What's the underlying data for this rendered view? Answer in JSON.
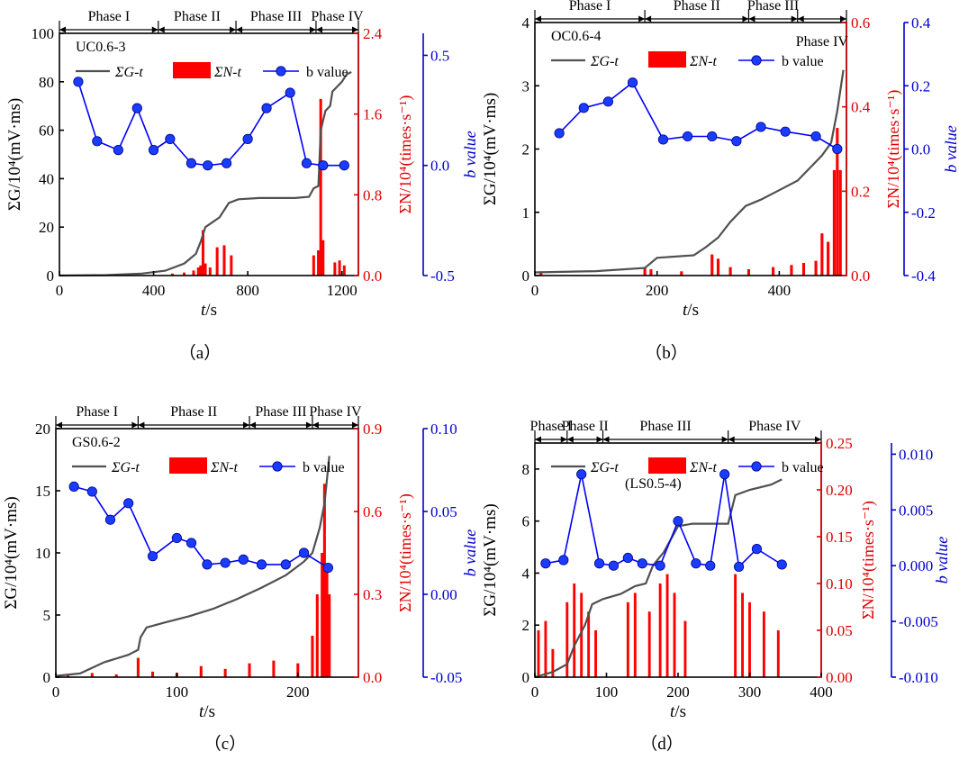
{
  "chart_data": [
    {
      "type": "line",
      "sample_id": "UC0.6-3",
      "caption": "（a）",
      "phases": [
        "Phase I",
        "Phase II",
        "Phase III",
        "Phase IV"
      ],
      "phase_bounds": [
        0,
        420,
        750,
        1090,
        1270
      ],
      "x": {
        "label_var": "t",
        "label_unit": "/s",
        "range": [
          0,
          1270
        ],
        "ticks": [
          0,
          400,
          800,
          1200
        ]
      },
      "y_left": {
        "label": "ΣG/10⁴(mV·ms)",
        "range": [
          0,
          100
        ],
        "ticks": [
          0,
          20,
          40,
          60,
          80,
          100
        ],
        "tick_labels": [
          "0",
          "20",
          "40",
          "60",
          "80",
          "100"
        ]
      },
      "y_red": {
        "label": "ΣN/10⁴(times·s⁻¹)",
        "range": [
          0,
          2.4
        ],
        "ticks": [
          0,
          0.8,
          1.6,
          2.4
        ],
        "tick_labels": [
          "0.0",
          "0.8",
          "1.6",
          "2.4"
        ]
      },
      "y_blue": {
        "label": "b value",
        "range": [
          -0.5,
          0.6
        ],
        "ticks": [
          -0.5,
          0,
          0.5
        ],
        "tick_labels": [
          "-0.5",
          "0.0",
          "0.5"
        ]
      },
      "legend": {
        "sg": "ΣG-t",
        "sn": "ΣN-t",
        "b": "b value"
      },
      "sg": [
        [
          0,
          0
        ],
        [
          200,
          0.2
        ],
        [
          350,
          0.8
        ],
        [
          450,
          2
        ],
        [
          530,
          5
        ],
        [
          580,
          9
        ],
        [
          600,
          14
        ],
        [
          620,
          20
        ],
        [
          650,
          22
        ],
        [
          680,
          24
        ],
        [
          720,
          30
        ],
        [
          760,
          31.5
        ],
        [
          850,
          32
        ],
        [
          1000,
          32
        ],
        [
          1060,
          32.5
        ],
        [
          1080,
          36
        ],
        [
          1100,
          37
        ],
        [
          1110,
          60
        ],
        [
          1130,
          68
        ],
        [
          1150,
          70
        ],
        [
          1160,
          76
        ],
        [
          1200,
          80
        ],
        [
          1220,
          83
        ],
        [
          1240,
          84
        ]
      ],
      "sn": [
        [
          480,
          0.02
        ],
        [
          530,
          0.03
        ],
        [
          570,
          0.05
        ],
        [
          590,
          0.08
        ],
        [
          600,
          0.1
        ],
        [
          610,
          0.45
        ],
        [
          620,
          0.12
        ],
        [
          640,
          0.08
        ],
        [
          670,
          0.28
        ],
        [
          700,
          0.3
        ],
        [
          730,
          0.2
        ],
        [
          1080,
          0.2
        ],
        [
          1100,
          0.25
        ],
        [
          1110,
          1.75
        ],
        [
          1120,
          0.35
        ],
        [
          1170,
          0.13
        ],
        [
          1190,
          0.15
        ],
        [
          1210,
          0.1
        ]
      ],
      "b": [
        [
          80,
          0.38
        ],
        [
          160,
          0.11
        ],
        [
          250,
          0.07
        ],
        [
          330,
          0.26
        ],
        [
          400,
          0.07
        ],
        [
          470,
          0.12
        ],
        [
          560,
          0.01
        ],
        [
          630,
          0.0
        ],
        [
          710,
          0.01
        ],
        [
          800,
          0.12
        ],
        [
          880,
          0.26
        ],
        [
          980,
          0.33
        ],
        [
          1050,
          0.01
        ],
        [
          1120,
          0.0
        ],
        [
          1210,
          0.0
        ]
      ]
    },
    {
      "type": "line",
      "sample_id": "OC0.6-4",
      "caption": "（b）",
      "phases": [
        "Phase I",
        "Phase II",
        "Phase III",
        "Phase IV"
      ],
      "phase_bounds": [
        0,
        180,
        350,
        430,
        510
      ],
      "x": {
        "label_var": "t",
        "label_unit": "/s",
        "range": [
          0,
          510
        ],
        "ticks": [
          0,
          200,
          400
        ]
      },
      "y_left": {
        "label": "ΣG/10⁴(mV·ms)",
        "range": [
          0,
          4
        ],
        "ticks": [
          0,
          1,
          2,
          3,
          4
        ],
        "tick_labels": [
          "0",
          "1",
          "2",
          "3",
          "4"
        ]
      },
      "y_red": {
        "label": "ΣN/10⁴(times·s⁻¹)",
        "range": [
          0,
          0.6
        ],
        "ticks": [
          0,
          0.2,
          0.4,
          0.6
        ],
        "tick_labels": [
          "0.0",
          "0.2",
          "0.4",
          "0.6"
        ]
      },
      "y_blue": {
        "label": "b value",
        "range": [
          -0.4,
          0.4
        ],
        "ticks": [
          -0.4,
          -0.2,
          0,
          0.2,
          0.4
        ],
        "tick_labels": [
          "-0.4",
          "-0.2",
          "0.0",
          "0.2",
          "0.4"
        ]
      },
      "legend": {
        "sg": "ΣG-t",
        "sn": "ΣN-t",
        "b": "b value"
      },
      "sg": [
        [
          0,
          0.05
        ],
        [
          100,
          0.07
        ],
        [
          180,
          0.12
        ],
        [
          200,
          0.28
        ],
        [
          260,
          0.32
        ],
        [
          280,
          0.45
        ],
        [
          300,
          0.6
        ],
        [
          320,
          0.85
        ],
        [
          345,
          1.1
        ],
        [
          370,
          1.2
        ],
        [
          400,
          1.35
        ],
        [
          430,
          1.5
        ],
        [
          450,
          1.7
        ],
        [
          470,
          1.9
        ],
        [
          485,
          2.1
        ],
        [
          495,
          2.6
        ],
        [
          505,
          3.25
        ]
      ],
      "sn": [
        [
          10,
          0.01
        ],
        [
          180,
          0.02
        ],
        [
          190,
          0.015
        ],
        [
          240,
          0.01
        ],
        [
          290,
          0.05
        ],
        [
          300,
          0.04
        ],
        [
          320,
          0.02
        ],
        [
          350,
          0.015
        ],
        [
          390,
          0.02
        ],
        [
          420,
          0.025
        ],
        [
          440,
          0.03
        ],
        [
          460,
          0.035
        ],
        [
          470,
          0.1
        ],
        [
          480,
          0.08
        ],
        [
          490,
          0.25
        ],
        [
          495,
          0.35
        ],
        [
          500,
          0.25
        ]
      ],
      "b": [
        [
          40,
          0.05
        ],
        [
          80,
          0.13
        ],
        [
          120,
          0.15
        ],
        [
          160,
          0.21
        ],
        [
          210,
          0.03
        ],
        [
          250,
          0.04
        ],
        [
          290,
          0.04
        ],
        [
          330,
          0.025
        ],
        [
          370,
          0.07
        ],
        [
          410,
          0.055
        ],
        [
          460,
          0.04
        ],
        [
          495,
          0.0
        ]
      ]
    },
    {
      "type": "line",
      "sample_id": "GS0.6-2",
      "caption": "（c）",
      "phases": [
        "Phase I",
        "Phase II",
        "Phase III",
        "Phase IV"
      ],
      "phase_bounds": [
        0,
        68,
        160,
        212,
        250
      ],
      "x": {
        "label_var": "t",
        "label_unit": "/s",
        "range": [
          0,
          250
        ],
        "ticks": [
          0,
          100,
          200
        ]
      },
      "y_left": {
        "label": "ΣG/10⁴(mV·ms)",
        "range": [
          0,
          20
        ],
        "ticks": [
          0,
          5,
          10,
          15,
          20
        ],
        "tick_labels": [
          "0",
          "5",
          "10",
          "15",
          "20"
        ]
      },
      "y_red": {
        "label": "ΣN/10⁴(times·s⁻¹)",
        "range": [
          0,
          0.9
        ],
        "ticks": [
          0,
          0.3,
          0.6,
          0.9
        ],
        "tick_labels": [
          "0.0",
          "0.3",
          "0.6",
          "0.9"
        ]
      },
      "y_blue": {
        "label": "b value",
        "range": [
          -0.05,
          0.1
        ],
        "ticks": [
          -0.05,
          0,
          0.05,
          0.1
        ],
        "tick_labels": [
          "-0.05",
          "0.00",
          "0.05",
          "0.10"
        ]
      },
      "legend": {
        "sg": "ΣG-t",
        "sn": "ΣN-t",
        "b": "b value"
      },
      "sg": [
        [
          0,
          0.1
        ],
        [
          20,
          0.3
        ],
        [
          40,
          1.2
        ],
        [
          60,
          1.8
        ],
        [
          68,
          2.2
        ],
        [
          70,
          3.2
        ],
        [
          75,
          4
        ],
        [
          90,
          4.4
        ],
        [
          110,
          4.9
        ],
        [
          130,
          5.5
        ],
        [
          150,
          6.3
        ],
        [
          170,
          7.2
        ],
        [
          190,
          8.2
        ],
        [
          205,
          9.3
        ],
        [
          212,
          10
        ],
        [
          218,
          12
        ],
        [
          222,
          14
        ],
        [
          226,
          17.8
        ]
      ],
      "sn": [
        [
          10,
          0.01
        ],
        [
          30,
          0.015
        ],
        [
          50,
          0.01
        ],
        [
          68,
          0.07
        ],
        [
          80,
          0.02
        ],
        [
          100,
          0.015
        ],
        [
          120,
          0.04
        ],
        [
          140,
          0.03
        ],
        [
          160,
          0.05
        ],
        [
          180,
          0.06
        ],
        [
          200,
          0.05
        ],
        [
          212,
          0.15
        ],
        [
          216,
          0.3
        ],
        [
          220,
          0.45
        ],
        [
          222,
          0.7
        ],
        [
          224,
          0.4
        ],
        [
          226,
          0.3
        ]
      ],
      "b": [
        [
          15,
          0.065
        ],
        [
          30,
          0.062
        ],
        [
          45,
          0.045
        ],
        [
          60,
          0.055
        ],
        [
          80,
          0.023
        ],
        [
          100,
          0.034
        ],
        [
          112,
          0.031
        ],
        [
          125,
          0.018
        ],
        [
          140,
          0.019
        ],
        [
          155,
          0.021
        ],
        [
          170,
          0.018
        ],
        [
          190,
          0.018
        ],
        [
          205,
          0.025
        ],
        [
          225,
          0.016
        ]
      ]
    },
    {
      "type": "line",
      "sample_id": "(LS0.5-4)",
      "caption": "（d）",
      "phases": [
        "Phase I",
        "Phase II",
        "Phase III",
        "Phase IV"
      ],
      "phase_bounds": [
        0,
        45,
        95,
        270,
        400
      ],
      "x": {
        "label_var": "t",
        "label_unit": "/s",
        "range": [
          0,
          400
        ],
        "ticks": [
          0,
          100,
          200,
          300,
          400
        ]
      },
      "y_left": {
        "label": "ΣG/10⁴(mV·ms)",
        "range": [
          0,
          9
        ],
        "ticks": [
          0,
          2,
          4,
          6,
          8
        ],
        "tick_labels": [
          "0",
          "2",
          "4",
          "6",
          "8"
        ]
      },
      "y_red": {
        "label": "ΣN/10⁴(times·s⁻¹)",
        "range": [
          0,
          0.25
        ],
        "ticks": [
          0,
          0.05,
          0.1,
          0.15,
          0.2,
          0.25
        ],
        "tick_labels": [
          "0.00",
          "0.05",
          "0.10",
          "0.15",
          "0.20",
          "0.25"
        ]
      },
      "y_blue": {
        "label": "b value",
        "range": [
          -0.01,
          0.011
        ],
        "ticks": [
          -0.01,
          -0.005,
          0,
          0.005,
          0.01
        ],
        "tick_labels": [
          "-0.010",
          "-0.005",
          "0.000",
          "0.005",
          "0.010"
        ]
      },
      "legend": {
        "sg": "ΣG-t",
        "sn": "ΣN-t",
        "b": "b value"
      },
      "sg": [
        [
          0,
          0
        ],
        [
          25,
          0.2
        ],
        [
          45,
          0.5
        ],
        [
          55,
          1.2
        ],
        [
          70,
          2
        ],
        [
          80,
          2.8
        ],
        [
          95,
          3
        ],
        [
          120,
          3.2
        ],
        [
          140,
          3.5
        ],
        [
          155,
          3.6
        ],
        [
          165,
          4.3
        ],
        [
          180,
          4.8
        ],
        [
          200,
          5.8
        ],
        [
          220,
          5.9
        ],
        [
          270,
          5.9
        ],
        [
          280,
          7
        ],
        [
          300,
          7.2
        ],
        [
          330,
          7.4
        ],
        [
          345,
          7.6
        ]
      ],
      "sn": [
        [
          5,
          0.05
        ],
        [
          15,
          0.06
        ],
        [
          25,
          0.03
        ],
        [
          45,
          0.08
        ],
        [
          55,
          0.1
        ],
        [
          65,
          0.09
        ],
        [
          75,
          0.07
        ],
        [
          85,
          0.05
        ],
        [
          130,
          0.08
        ],
        [
          140,
          0.09
        ],
        [
          160,
          0.07
        ],
        [
          175,
          0.1
        ],
        [
          185,
          0.11
        ],
        [
          195,
          0.09
        ],
        [
          210,
          0.06
        ],
        [
          280,
          0.11
        ],
        [
          290,
          0.09
        ],
        [
          300,
          0.08
        ],
        [
          320,
          0.07
        ],
        [
          340,
          0.05
        ]
      ],
      "b": [
        [
          15,
          0.0002
        ],
        [
          40,
          0.0005
        ],
        [
          65,
          0.0082
        ],
        [
          90,
          0.0002
        ],
        [
          110,
          0.0
        ],
        [
          130,
          0.0007
        ],
        [
          150,
          0.0002
        ],
        [
          175,
          0.0
        ],
        [
          200,
          0.004
        ],
        [
          225,
          0.0002
        ],
        [
          245,
          0.0
        ],
        [
          265,
          0.0082
        ],
        [
          285,
          -0.0001
        ],
        [
          310,
          0.0015
        ],
        [
          345,
          0.0001
        ]
      ]
    }
  ]
}
